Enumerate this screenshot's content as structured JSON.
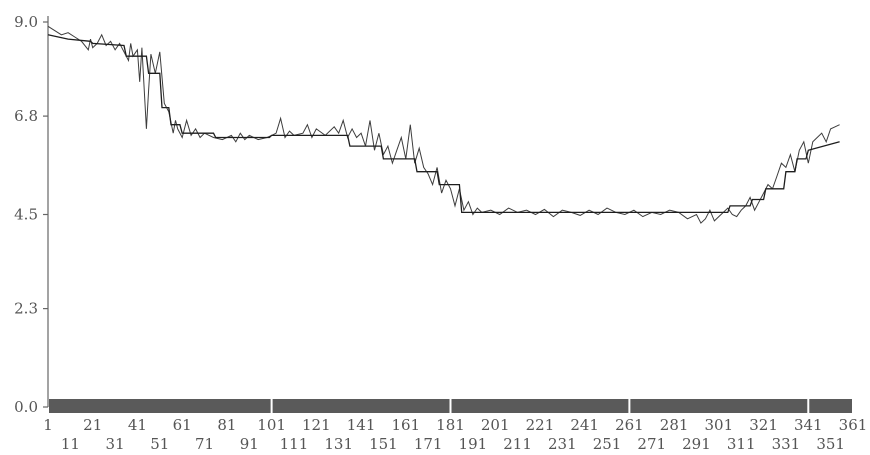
{
  "chart_data": {
    "type": "line",
    "title": "",
    "xlabel": "",
    "ylabel": "",
    "xlim": [
      1,
      361
    ],
    "ylim": [
      0,
      9
    ],
    "y_ticks": [
      "0.0",
      "2.3",
      "4.5",
      "6.8",
      "9.0"
    ],
    "x_ticks_row1": [
      "1",
      "21",
      "41",
      "61",
      "81",
      "101",
      "121",
      "141",
      "161",
      "181",
      "201",
      "221",
      "241",
      "261",
      "281",
      "301",
      "321",
      "341",
      "361"
    ],
    "x_ticks_row2": [
      "11",
      "31",
      "51",
      "71",
      "91",
      "111",
      "131",
      "151",
      "171",
      "191",
      "211",
      "231",
      "251",
      "271",
      "291",
      "311",
      "331",
      "351"
    ],
    "grid": false,
    "baseline_bar_color": "#5a5a5a",
    "series": [
      {
        "style": "raw",
        "x": [
          1,
          4,
          7,
          10,
          13,
          16,
          19,
          20,
          21,
          23,
          25,
          27,
          29,
          31,
          33,
          35,
          37,
          38,
          39,
          41,
          42,
          43,
          45,
          46,
          47,
          49,
          51,
          53,
          55,
          57,
          58,
          59,
          61,
          63,
          65,
          67,
          69,
          71,
          75,
          79,
          83,
          85,
          87,
          89,
          91,
          95,
          99,
          101,
          103,
          105,
          107,
          109,
          111,
          115,
          117,
          119,
          121,
          125,
          129,
          131,
          133,
          135,
          137,
          139,
          141,
          143,
          145,
          147,
          149,
          151,
          153,
          155,
          157,
          159,
          161,
          163,
          165,
          167,
          169,
          171,
          173,
          175,
          177,
          179,
          181,
          183,
          185,
          187,
          189,
          191,
          193,
          195,
          199,
          203,
          207,
          211,
          215,
          219,
          223,
          227,
          231,
          235,
          239,
          243,
          247,
          251,
          255,
          259,
          263,
          267,
          271,
          275,
          279,
          283,
          287,
          291,
          293,
          295,
          297,
          299,
          301,
          303,
          305,
          307,
          309,
          311,
          313,
          315,
          317,
          319,
          321,
          323,
          325,
          327,
          329,
          331,
          333,
          335,
          337,
          339,
          341,
          343,
          345,
          347,
          349,
          351,
          353,
          355
        ],
        "values": [
          8.9,
          8.8,
          8.7,
          8.75,
          8.65,
          8.55,
          8.35,
          8.6,
          8.4,
          8.5,
          8.7,
          8.45,
          8.55,
          8.35,
          8.5,
          8.3,
          8.1,
          8.5,
          8.2,
          8.35,
          7.6,
          8.4,
          6.5,
          7.4,
          8.25,
          7.8,
          8.3,
          7.1,
          6.9,
          6.4,
          6.7,
          6.5,
          6.3,
          6.7,
          6.35,
          6.5,
          6.3,
          6.4,
          6.3,
          6.25,
          6.35,
          6.2,
          6.4,
          6.25,
          6.35,
          6.25,
          6.3,
          6.35,
          6.4,
          6.75,
          6.3,
          6.45,
          6.35,
          6.4,
          6.6,
          6.3,
          6.5,
          6.35,
          6.55,
          6.4,
          6.7,
          6.3,
          6.5,
          6.3,
          6.4,
          6.1,
          6.7,
          6.0,
          6.4,
          5.9,
          6.1,
          5.7,
          6.0,
          6.3,
          5.8,
          6.6,
          5.7,
          6.05,
          5.6,
          5.45,
          5.2,
          5.6,
          5.0,
          5.3,
          5.1,
          4.7,
          5.1,
          4.6,
          4.8,
          4.5,
          4.65,
          4.55,
          4.6,
          4.5,
          4.65,
          4.55,
          4.6,
          4.5,
          4.62,
          4.45,
          4.6,
          4.55,
          4.48,
          4.6,
          4.5,
          4.65,
          4.55,
          4.5,
          4.6,
          4.45,
          4.55,
          4.5,
          4.6,
          4.55,
          4.4,
          4.5,
          4.3,
          4.4,
          4.6,
          4.35,
          4.45,
          4.55,
          4.65,
          4.5,
          4.45,
          4.6,
          4.7,
          4.9,
          4.6,
          4.8,
          5.0,
          5.2,
          5.1,
          5.4,
          5.7,
          5.6,
          5.9,
          5.5,
          6.0,
          6.2,
          5.7,
          6.2,
          6.3,
          6.4,
          6.2,
          6.5,
          6.55,
          6.6
        ]
      },
      {
        "style": "smoothed",
        "x": [
          1,
          10,
          20,
          21,
          35,
          36,
          45,
          46,
          51,
          52,
          55,
          56,
          60,
          61,
          75,
          76,
          100,
          101,
          135,
          136,
          150,
          151,
          165,
          166,
          175,
          176,
          185,
          186,
          305,
          306,
          315,
          316,
          321,
          322,
          330,
          331,
          335,
          336,
          340,
          341,
          355
        ],
        "values": [
          8.7,
          8.6,
          8.55,
          8.5,
          8.45,
          8.2,
          8.2,
          7.8,
          7.8,
          7.0,
          7.0,
          6.6,
          6.6,
          6.4,
          6.4,
          6.3,
          6.3,
          6.35,
          6.35,
          6.1,
          6.1,
          5.8,
          5.8,
          5.5,
          5.5,
          5.2,
          5.2,
          4.55,
          4.55,
          4.7,
          4.7,
          4.85,
          4.85,
          5.1,
          5.1,
          5.5,
          5.5,
          5.8,
          5.8,
          6.0,
          6.2
        ]
      }
    ]
  }
}
